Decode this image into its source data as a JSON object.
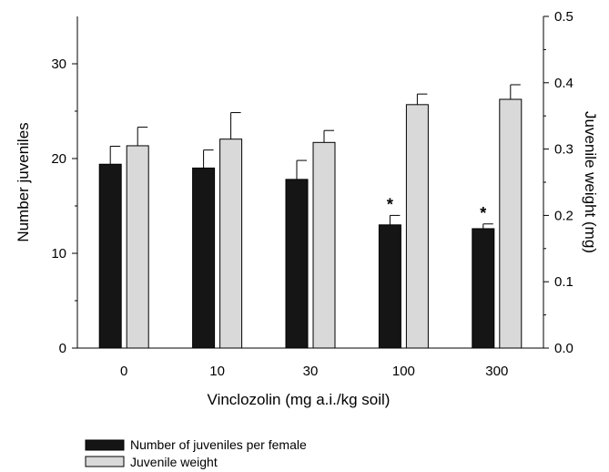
{
  "chart_data": {
    "type": "bar",
    "categories": [
      "0",
      "10",
      "30",
      "100",
      "300"
    ],
    "xlabel": "Vinclozolin (mg a.i./kg soil)",
    "ylabel": "Number juveniles",
    "y2label": "Juvenile weight (mg)",
    "ylim": [
      0,
      35
    ],
    "y2lim": [
      0,
      0.5
    ],
    "yticks": [
      "0",
      "10",
      "20",
      "30"
    ],
    "y2ticks": [
      "0.0",
      "0.1",
      "0.2",
      "0.3",
      "0.4",
      "0.5"
    ],
    "series": [
      {
        "name": "Number of juveniles per female",
        "axis": "left",
        "color": "#151515",
        "values": [
          19.4,
          19.0,
          17.8,
          13.0,
          12.6
        ],
        "errors": [
          1.9,
          1.9,
          2.0,
          1.0,
          0.5
        ],
        "markers": [
          "",
          "",
          "",
          "*",
          "*"
        ]
      },
      {
        "name": "Juvenile weight",
        "axis": "right",
        "color": "#d9d9d9",
        "values": [
          0.305,
          0.315,
          0.31,
          0.367,
          0.375
        ],
        "errors": [
          0.028,
          0.04,
          0.018,
          0.016,
          0.022
        ]
      }
    ],
    "legend": "bottom-left",
    "grid": false
  }
}
